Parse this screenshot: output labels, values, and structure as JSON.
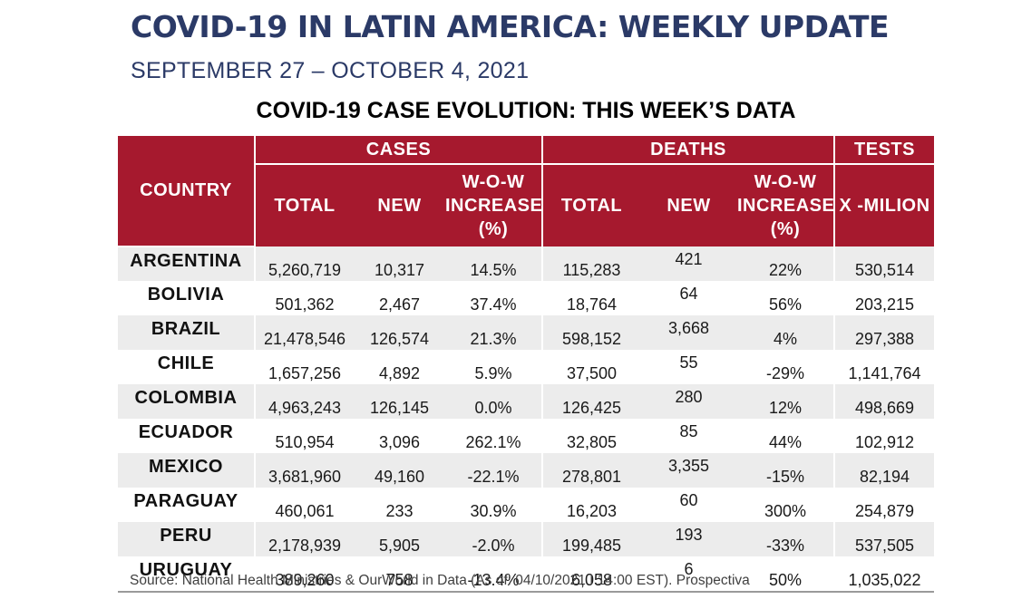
{
  "header": {
    "title": "COVID-19 IN LATIN AMERICA: WEEKLY UPDATE",
    "subtitle": "SEPTEMBER 27 – OCTOBER 4, 2021",
    "table_title": "COVID-19 CASE EVOLUTION: THIS WEEK’S DATA"
  },
  "table": {
    "group_headers": {
      "country": "COUNTRY",
      "cases": "CASES",
      "deaths": "DEATHS",
      "tests": "TESTS"
    },
    "sub_headers": {
      "cases_total": "TOTAL",
      "cases_new": "NEW",
      "cases_wow_line1": "W-O-W",
      "cases_wow_line2": "INCREASE",
      "cases_wow_line3": "(%)",
      "deaths_total": "TOTAL",
      "deaths_new": "NEW",
      "deaths_wow_line1": "W-O-W",
      "deaths_wow_line2": "INCREASE",
      "deaths_wow_line3": "(%)",
      "tests_per_million": "X -MILION"
    },
    "rows": [
      {
        "country": "ARGENTINA",
        "cases_total": "5,260,719",
        "cases_new": "10,317",
        "cases_wow": "14.5%",
        "deaths_total": "115,283",
        "deaths_new": "421",
        "deaths_wow": "22%",
        "tests": "530,514"
      },
      {
        "country": "BOLIVIA",
        "cases_total": "501,362",
        "cases_new": "2,467",
        "cases_wow": "37.4%",
        "deaths_total": "18,764",
        "deaths_new": "64",
        "deaths_wow": "56%",
        "tests": "203,215"
      },
      {
        "country": "BRAZIL",
        "cases_total": "21,478,546",
        "cases_new": "126,574",
        "cases_wow": "21.3%",
        "deaths_total": "598,152",
        "deaths_new": "3,668",
        "deaths_wow": "4%",
        "tests": "297,388"
      },
      {
        "country": "CHILE",
        "cases_total": "1,657,256",
        "cases_new": "4,892",
        "cases_wow": "5.9%",
        "deaths_total": "37,500",
        "deaths_new": "55",
        "deaths_wow": "-29%",
        "tests": "1,141,764"
      },
      {
        "country": "COLOMBIA",
        "cases_total": "4,963,243",
        "cases_new": "126,145",
        "cases_wow": "0.0%",
        "deaths_total": "126,425",
        "deaths_new": "280",
        "deaths_wow": "12%",
        "tests": "498,669"
      },
      {
        "country": "ECUADOR",
        "cases_total": "510,954",
        "cases_new": "3,096",
        "cases_wow": "262.1%",
        "deaths_total": "32,805",
        "deaths_new": "85",
        "deaths_wow": "44%",
        "tests": "102,912"
      },
      {
        "country": "MEXICO",
        "cases_total": "3,681,960",
        "cases_new": "49,160",
        "cases_wow": "-22.1%",
        "deaths_total": "278,801",
        "deaths_new": "3,355",
        "deaths_wow": "-15%",
        "tests": "82,194"
      },
      {
        "country": "PARAGUAY",
        "cases_total": "460,061",
        "cases_new": "233",
        "cases_wow": "30.9%",
        "deaths_total": "16,203",
        "deaths_new": "60",
        "deaths_wow": "300%",
        "tests": "254,879"
      },
      {
        "country": "PERU",
        "cases_total": "2,178,939",
        "cases_new": "5,905",
        "cases_wow": "-2.0%",
        "deaths_total": "199,485",
        "deaths_new": "193",
        "deaths_wow": "-33%",
        "tests": "537,505"
      },
      {
        "country": "URUGUAY",
        "cases_total": "389,260",
        "cases_new": "758",
        "cases_wow": "-13.4%",
        "deaths_total": "6,058",
        "deaths_new": "6",
        "deaths_wow": "50%",
        "tests": "1,035,022"
      }
    ]
  },
  "footer": {
    "source": "Source: National Health Ministries & OurWorld in Data (As of: 04/10/2021 I 14:00 EST). Prospectiva"
  },
  "colors": {
    "title_navy": "#2b3a67",
    "header_red": "#a6192e",
    "row_alt_gray": "#ececec"
  }
}
